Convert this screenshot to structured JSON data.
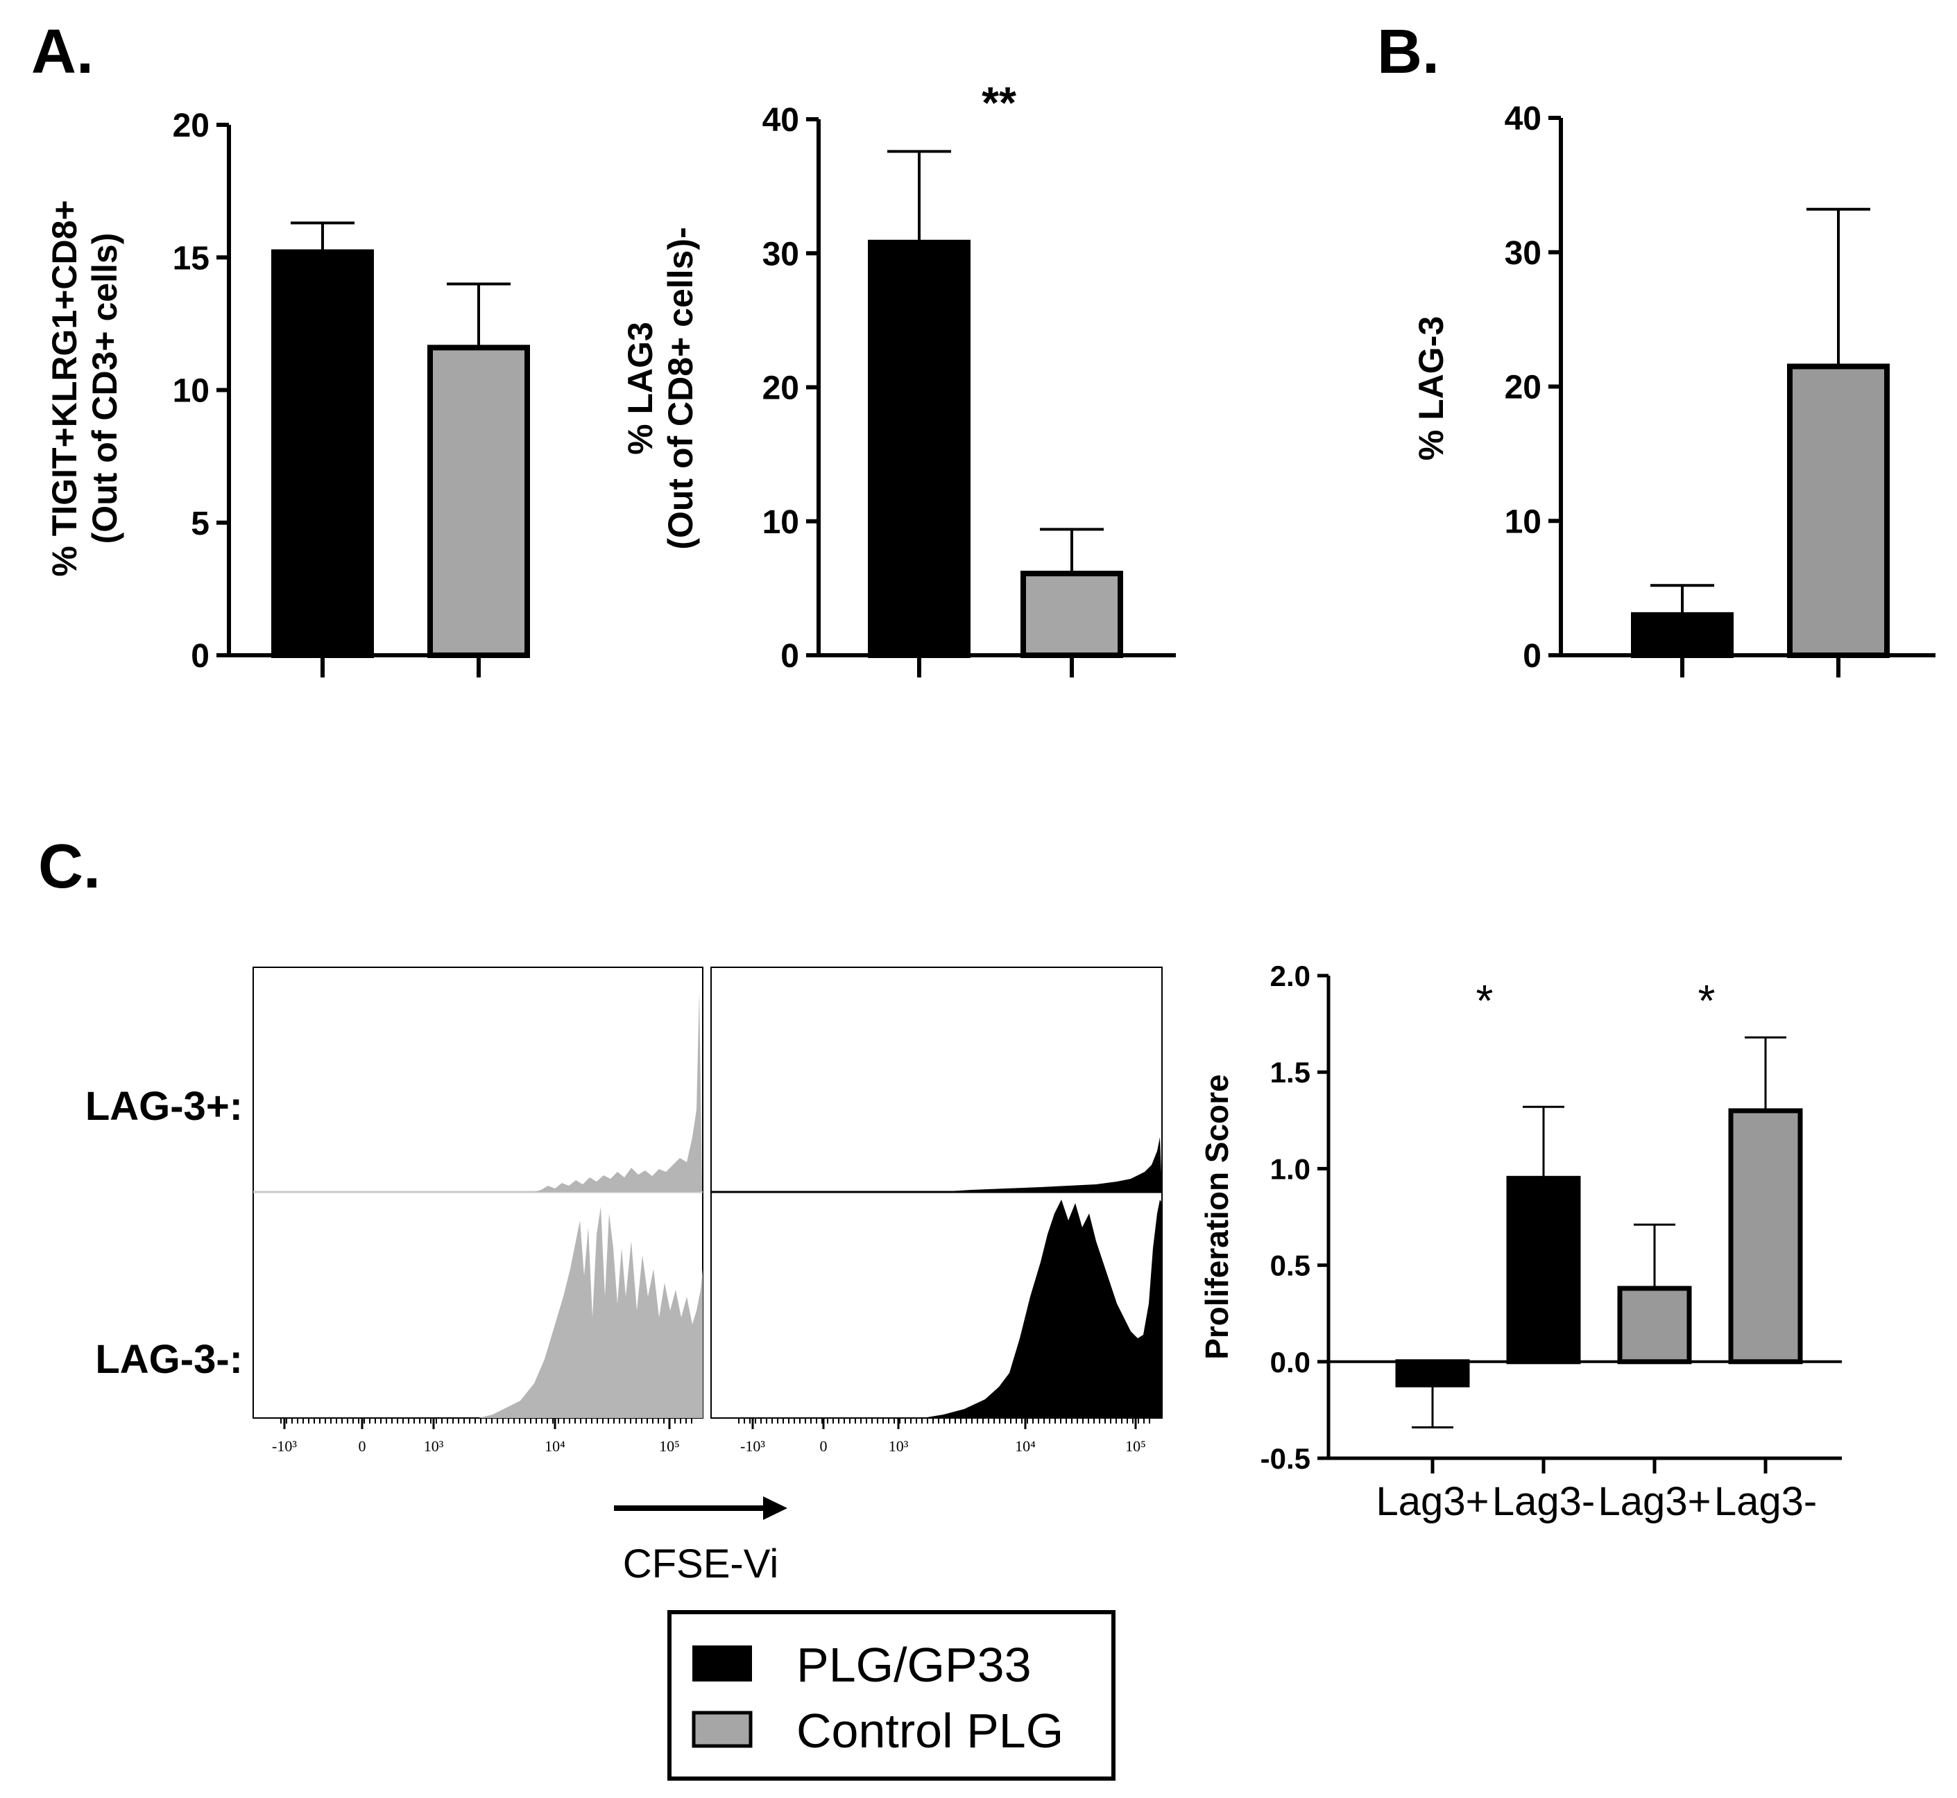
{
  "panel_labels": {
    "a": "A.",
    "b": "B.",
    "c": "C."
  },
  "colors": {
    "dark": "#000000",
    "light": "#a6a6a6",
    "mid": "#999999",
    "hist_light": "#b5b5b5",
    "hist_dark": "#000000"
  },
  "chart_data": [
    {
      "id": "A1",
      "type": "bar",
      "ylabel_line1": "% TIGIT+KLRG1+CD8+",
      "ylabel_line2": "(Out of CD3+ cells)",
      "ylim": [
        0,
        20
      ],
      "yticks": [
        "0",
        "5",
        "10",
        "15",
        "20"
      ],
      "ytick_values": [
        0,
        5,
        10,
        15,
        20
      ],
      "series": [
        {
          "name": "PLG/GP33",
          "value": 15.2,
          "error": 1.1,
          "color": "dark"
        },
        {
          "name": "Control PLG",
          "value": 11.6,
          "error": 2.4,
          "color": "light"
        }
      ],
      "significance": ""
    },
    {
      "id": "A2",
      "type": "bar",
      "ylabel_line1": "% LAG3",
      "ylabel_line2": "(Out of CD8+ cells)-",
      "ylim": [
        0,
        40
      ],
      "yticks": [
        "0",
        "10",
        "20",
        "30",
        "40"
      ],
      "ytick_values": [
        0,
        10,
        20,
        30,
        40
      ],
      "series": [
        {
          "name": "PLG/GP33",
          "value": 30.8,
          "error": 6.8,
          "color": "dark"
        },
        {
          "name": "Control PLG",
          "value": 6.1,
          "error": 3.3,
          "color": "light"
        }
      ],
      "significance": "**"
    },
    {
      "id": "B",
      "type": "bar",
      "ylabel_line1": "% LAG-3",
      "ylabel_line2": "",
      "ylim": [
        0,
        40
      ],
      "yticks": [
        "0",
        "10",
        "20",
        "30",
        "40"
      ],
      "ytick_values": [
        0,
        10,
        20,
        30,
        40
      ],
      "series": [
        {
          "name": "PLG/GP33",
          "value": 3.0,
          "error": 2.2,
          "color": "dark"
        },
        {
          "name": "Control PLG",
          "value": 21.5,
          "error": 11.7,
          "color": "mid"
        }
      ],
      "significance": ""
    },
    {
      "id": "C-bar",
      "type": "bar",
      "ylabel_line1": "Proliferation Score",
      "ylabel_line2": "",
      "ylim": [
        -0.5,
        2.0
      ],
      "yticks": [
        "-0.5",
        "0.0",
        "0.5",
        "1.0",
        "1.5",
        "2.0"
      ],
      "ytick_values": [
        -0.5,
        0,
        0.5,
        1.0,
        1.5,
        2.0
      ],
      "categories": [
        "Lag3+",
        "Lag3-",
        "Lag3+",
        "Lag3-"
      ],
      "series": [
        {
          "name": "PLG/GP33",
          "category": "Lag3+",
          "value": -0.12,
          "error": 0.22,
          "color": "dark"
        },
        {
          "name": "PLG/GP33",
          "category": "Lag3-",
          "value": 0.95,
          "error": 0.37,
          "color": "dark"
        },
        {
          "name": "Control PLG",
          "category": "Lag3+",
          "value": 0.38,
          "error": 0.33,
          "color": "mid"
        },
        {
          "name": "Control PLG",
          "category": "Lag3-",
          "value": 1.3,
          "error": 0.38,
          "color": "mid"
        }
      ],
      "significance_marks": [
        "*",
        "*"
      ]
    }
  ],
  "flow": {
    "row_labels": [
      "LAG-3+:",
      "LAG-3-:"
    ],
    "ticks": [
      "-10³",
      "0",
      "10³",
      "10⁴",
      "10⁵"
    ],
    "axis_label": "CFSE-Vi"
  },
  "legend": {
    "items": [
      {
        "label": "PLG/GP33",
        "color": "dark"
      },
      {
        "label": "Control PLG",
        "color": "light"
      }
    ]
  }
}
